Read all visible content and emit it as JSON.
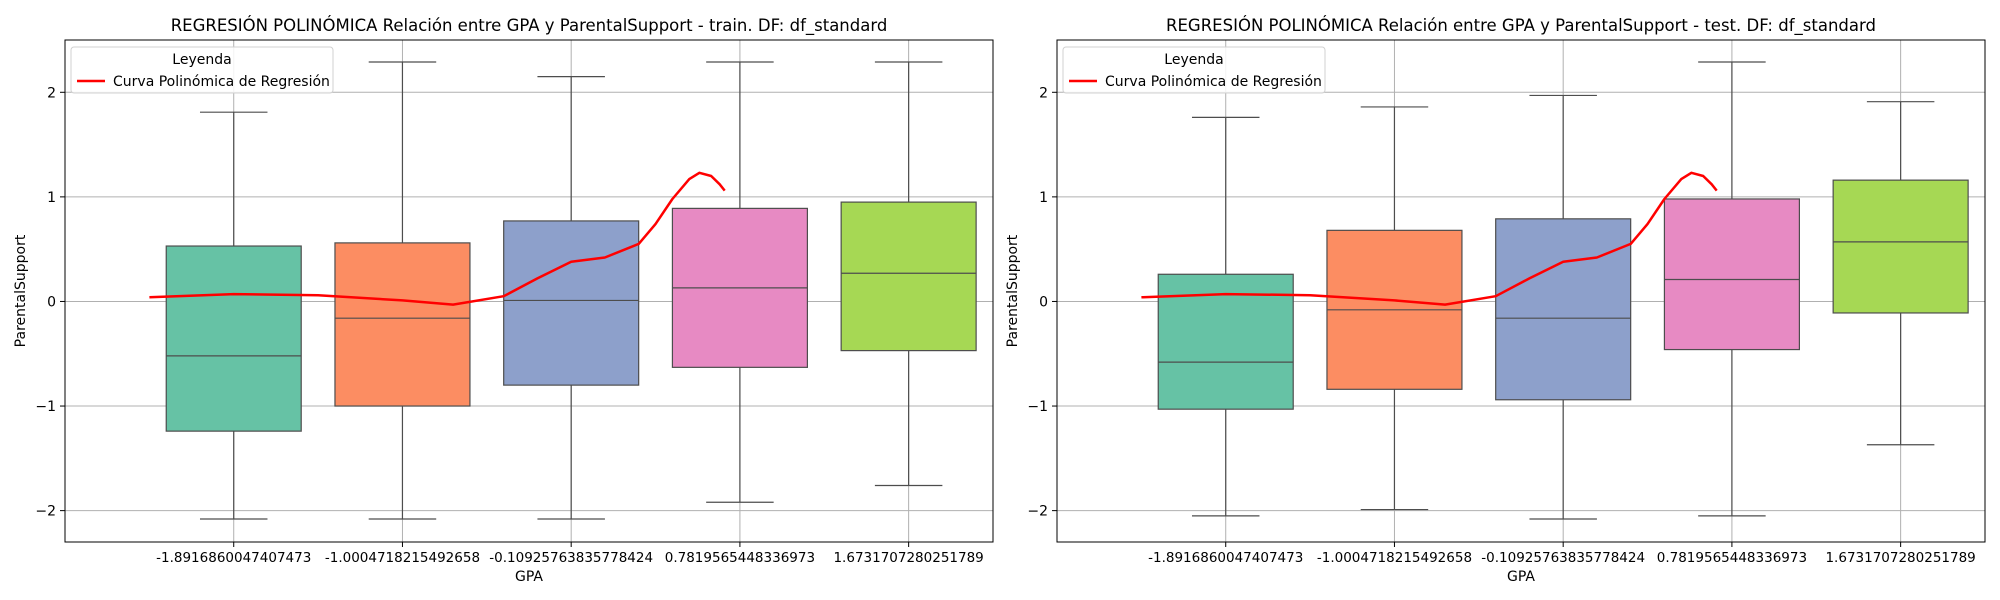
{
  "chart_data": [
    {
      "type": "box",
      "title": "REGRESIÓN POLINÓMICA Relación entre GPA y ParentalSupport - train. DF: df_standard",
      "xlabel": "GPA",
      "ylabel": "ParentalSupport",
      "ylim": [
        -2.3,
        2.5
      ],
      "yticks": [
        -2,
        -1,
        0,
        1,
        2
      ],
      "ytick_labels": [
        "−2",
        "−1",
        "0",
        "1",
        "2"
      ],
      "grid": true,
      "categories": [
        "-1.8916860047407473",
        "-1.0004718215492658",
        "-0.10925763835778424",
        "0.7819565448336973",
        "1.6731707280251789"
      ],
      "boxes": [
        {
          "whisker_low": -2.08,
          "q1": -1.24,
          "median": -0.52,
          "q3": 0.53,
          "whisker_high": 1.81,
          "color": "#66c2a5"
        },
        {
          "whisker_low": -2.08,
          "q1": -1.0,
          "median": -0.16,
          "q3": 0.56,
          "whisker_high": 2.29,
          "color": "#fc8d62"
        },
        {
          "whisker_low": -2.08,
          "q1": -0.8,
          "median": 0.01,
          "q3": 0.77,
          "whisker_high": 2.15,
          "color": "#8da0cb"
        },
        {
          "whisker_low": -1.92,
          "q1": -0.63,
          "median": 0.13,
          "q3": 0.89,
          "whisker_high": 2.29,
          "color": "#e78ac3"
        },
        {
          "whisker_low": -1.76,
          "q1": -0.47,
          "median": 0.27,
          "q3": 0.95,
          "whisker_high": 2.29,
          "color": "#a6d854"
        }
      ],
      "curve": {
        "name": "Curva Polinómica de Regresión",
        "color": "#ff0000",
        "x_index": [
          -0.5,
          0.0,
          0.5,
          1.0,
          1.3,
          1.6,
          1.8,
          2.0,
          2.2,
          2.4,
          2.5,
          2.6,
          2.7,
          2.76,
          2.83,
          2.88,
          2.91
        ],
        "y": [
          0.04,
          0.07,
          0.06,
          0.01,
          -0.03,
          0.05,
          0.22,
          0.38,
          0.42,
          0.55,
          0.74,
          0.98,
          1.17,
          1.23,
          1.2,
          1.12,
          1.06
        ]
      },
      "legend": {
        "title": "Leyenda",
        "position": "upper-left"
      }
    },
    {
      "type": "box",
      "title": "REGRESIÓN POLINÓMICA Relación entre GPA y ParentalSupport - test. DF: df_standard",
      "xlabel": "GPA",
      "ylabel": "ParentalSupport",
      "ylim": [
        -2.3,
        2.5
      ],
      "yticks": [
        -2,
        -1,
        0,
        1,
        2
      ],
      "ytick_labels": [
        "−2",
        "−1",
        "0",
        "1",
        "2"
      ],
      "grid": true,
      "categories": [
        "-1.8916860047407473",
        "-1.0004718215492658",
        "-0.10925763835778424",
        "0.7819565448336973",
        "1.6731707280251789"
      ],
      "boxes": [
        {
          "whisker_low": -2.05,
          "q1": -1.03,
          "median": -0.58,
          "q3": 0.26,
          "whisker_high": 1.76,
          "color": "#66c2a5"
        },
        {
          "whisker_low": -1.99,
          "q1": -0.84,
          "median": -0.08,
          "q3": 0.68,
          "whisker_high": 1.86,
          "color": "#fc8d62"
        },
        {
          "whisker_low": -2.08,
          "q1": -0.94,
          "median": -0.16,
          "q3": 0.79,
          "whisker_high": 1.97,
          "color": "#8da0cb"
        },
        {
          "whisker_low": -2.05,
          "q1": -0.46,
          "median": 0.21,
          "q3": 0.98,
          "whisker_high": 2.29,
          "color": "#e78ac3"
        },
        {
          "whisker_low": -1.37,
          "q1": -0.11,
          "median": 0.57,
          "q3": 1.16,
          "whisker_high": 1.91,
          "color": "#a6d854"
        }
      ],
      "curve": {
        "name": "Curva Polinómica de Regresión",
        "color": "#ff0000",
        "x_index": [
          -0.5,
          0.0,
          0.5,
          1.0,
          1.3,
          1.6,
          1.8,
          2.0,
          2.2,
          2.4,
          2.5,
          2.6,
          2.7,
          2.76,
          2.83,
          2.88,
          2.91
        ],
        "y": [
          0.04,
          0.07,
          0.06,
          0.01,
          -0.03,
          0.05,
          0.22,
          0.38,
          0.42,
          0.55,
          0.74,
          0.98,
          1.17,
          1.23,
          1.2,
          1.12,
          1.06
        ]
      },
      "legend": {
        "title": "Leyenda",
        "position": "upper-left"
      }
    }
  ]
}
